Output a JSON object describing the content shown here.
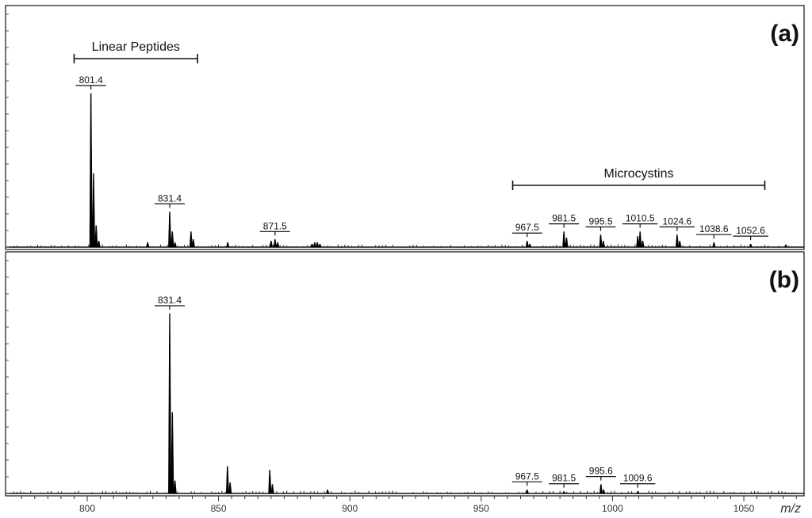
{
  "chart_data": [
    {
      "type": "line",
      "panel_label": "(a)",
      "xlim": [
        770,
        1072
      ],
      "ylim": [
        0,
        100
      ],
      "grid": false,
      "group_annotations": [
        {
          "label": "Linear Peptides",
          "x_start": 795,
          "x_end": 842
        },
        {
          "label": "Microcystins",
          "x_start": 962,
          "x_end": 1058
        }
      ],
      "peak_labels": [
        {
          "label": "801.4",
          "x": 801.4,
          "y": 100
        },
        {
          "label": "831.4",
          "x": 831.4,
          "y": 23
        },
        {
          "label": "871.5",
          "x": 871.5,
          "y": 5
        },
        {
          "label": "967.5",
          "x": 967.5,
          "y": 4
        },
        {
          "label": "981.5",
          "x": 981.5,
          "y": 10
        },
        {
          "label": "995.5",
          "x": 995.5,
          "y": 8
        },
        {
          "label": "1010.5",
          "x": 1010.5,
          "y": 10
        },
        {
          "label": "1024.6",
          "x": 1024.6,
          "y": 8
        },
        {
          "label": "1038.6",
          "x": 1038.6,
          "y": 3
        },
        {
          "label": "1052.6",
          "x": 1052.6,
          "y": 2
        }
      ],
      "peaks": [
        {
          "x": 801.4,
          "y": 100
        },
        {
          "x": 802.4,
          "y": 48
        },
        {
          "x": 803.4,
          "y": 14
        },
        {
          "x": 804.4,
          "y": 4
        },
        {
          "x": 823.0,
          "y": 3
        },
        {
          "x": 831.4,
          "y": 23
        },
        {
          "x": 832.4,
          "y": 10
        },
        {
          "x": 833.4,
          "y": 3
        },
        {
          "x": 839.5,
          "y": 10
        },
        {
          "x": 840.4,
          "y": 5
        },
        {
          "x": 853.5,
          "y": 3
        },
        {
          "x": 870.0,
          "y": 4
        },
        {
          "x": 871.5,
          "y": 5
        },
        {
          "x": 872.5,
          "y": 3
        },
        {
          "x": 885.6,
          "y": 2
        },
        {
          "x": 886.6,
          "y": 3
        },
        {
          "x": 887.6,
          "y": 3
        },
        {
          "x": 888.6,
          "y": 2
        },
        {
          "x": 967.5,
          "y": 4
        },
        {
          "x": 968.5,
          "y": 2
        },
        {
          "x": 981.5,
          "y": 10
        },
        {
          "x": 982.5,
          "y": 6
        },
        {
          "x": 995.5,
          "y": 8
        },
        {
          "x": 996.5,
          "y": 4
        },
        {
          "x": 1009.6,
          "y": 7
        },
        {
          "x": 1010.5,
          "y": 10
        },
        {
          "x": 1011.5,
          "y": 4
        },
        {
          "x": 1024.6,
          "y": 8
        },
        {
          "x": 1025.6,
          "y": 4
        },
        {
          "x": 1038.6,
          "y": 3
        },
        {
          "x": 1052.6,
          "y": 2
        },
        {
          "x": 1066.0,
          "y": 1.5
        }
      ]
    },
    {
      "type": "line",
      "panel_label": "(b)",
      "xlim": [
        770,
        1072
      ],
      "ylim": [
        0,
        100
      ],
      "grid": false,
      "xlabel": "m/z",
      "xticks": [
        800,
        850,
        900,
        950,
        1000,
        1050
      ],
      "peak_labels": [
        {
          "label": "831.4",
          "x": 831.4,
          "y": 100
        },
        {
          "label": "967.5",
          "x": 967.5,
          "y": 2
        },
        {
          "label": "981.5",
          "x": 981.5,
          "y": 1
        },
        {
          "label": "995.6",
          "x": 995.6,
          "y": 5
        },
        {
          "label": "1009.6",
          "x": 1009.6,
          "y": 1
        }
      ],
      "peaks": [
        {
          "x": 831.4,
          "y": 100
        },
        {
          "x": 832.4,
          "y": 45
        },
        {
          "x": 833.4,
          "y": 7
        },
        {
          "x": 853.4,
          "y": 15
        },
        {
          "x": 854.4,
          "y": 6
        },
        {
          "x": 869.5,
          "y": 13
        },
        {
          "x": 870.5,
          "y": 5
        },
        {
          "x": 891.5,
          "y": 2
        },
        {
          "x": 967.5,
          "y": 2
        },
        {
          "x": 981.5,
          "y": 1
        },
        {
          "x": 995.6,
          "y": 5
        },
        {
          "x": 996.6,
          "y": 2
        },
        {
          "x": 1009.6,
          "y": 1
        }
      ]
    }
  ]
}
